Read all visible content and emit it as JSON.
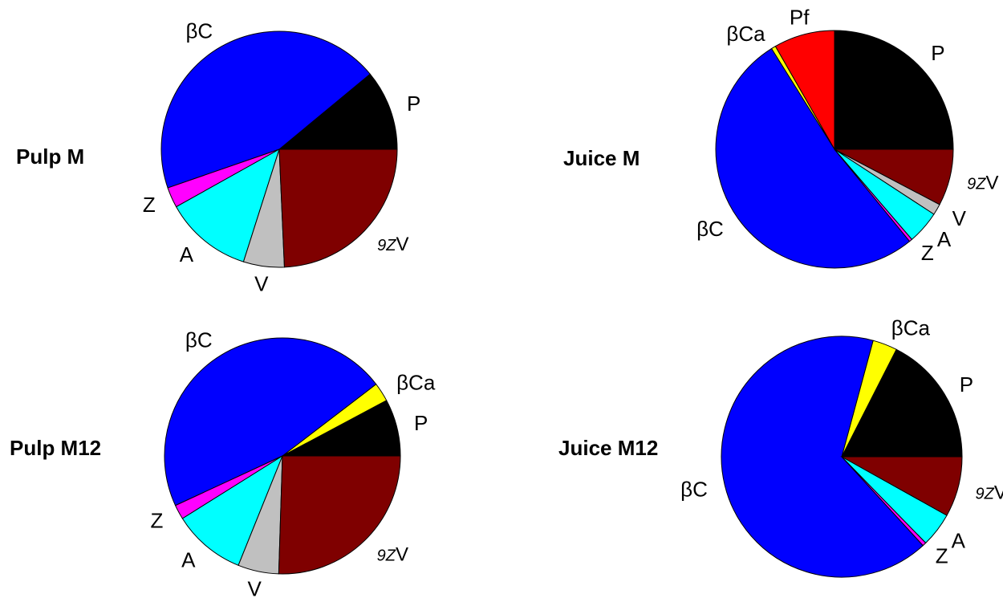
{
  "chart_data": [
    {
      "type": "pie",
      "title": "Pulp M",
      "slices": [
        {
          "label": "P",
          "value": 11.0,
          "color": "#000000"
        },
        {
          "label": "βC",
          "value": 44.3,
          "color": "#0000ff"
        },
        {
          "label": "Z",
          "value": 2.8,
          "color": "#ff00ff"
        },
        {
          "label": "A",
          "value": 12.0,
          "color": "#00ffff"
        },
        {
          "label": "V",
          "value": 5.6,
          "color": "#c0c0c0"
        },
        {
          "label": "9ZV",
          "value": 24.3,
          "color": "#7f0000"
        }
      ]
    },
    {
      "type": "pie",
      "title": "Juice M",
      "slices": [
        {
          "label": "P",
          "value": 25.0,
          "color": "#000000"
        },
        {
          "label": "Pf",
          "value": 8.3,
          "color": "#ff0000"
        },
        {
          "label": "βCa",
          "value": 0.6,
          "color": "#ffff00"
        },
        {
          "label": "βC",
          "value": 52.0,
          "color": "#0000ff"
        },
        {
          "label": "Z",
          "value": 0.4,
          "color": "#ff00ff"
        },
        {
          "label": "A",
          "value": 4.5,
          "color": "#00ffff"
        },
        {
          "label": "V",
          "value": 1.5,
          "color": "#c0c0c0"
        },
        {
          "label": "9ZV",
          "value": 7.7,
          "color": "#7f0000"
        }
      ]
    },
    {
      "type": "pie",
      "title": "Pulp M12",
      "slices": [
        {
          "label": "P",
          "value": 7.8,
          "color": "#000000"
        },
        {
          "label": "βCa",
          "value": 2.6,
          "color": "#ffff00"
        },
        {
          "label": "βC",
          "value": 46.5,
          "color": "#0000ff"
        },
        {
          "label": "Z",
          "value": 2.0,
          "color": "#ff00ff"
        },
        {
          "label": "A",
          "value": 10.0,
          "color": "#00ffff"
        },
        {
          "label": "V",
          "value": 5.6,
          "color": "#c0c0c0"
        },
        {
          "label": "9ZV",
          "value": 25.5,
          "color": "#7f0000"
        }
      ]
    },
    {
      "type": "pie",
      "title": "Juice M12",
      "slices": [
        {
          "label": "P",
          "value": 17.5,
          "color": "#000000"
        },
        {
          "label": "βCa",
          "value": 3.3,
          "color": "#ffff00"
        },
        {
          "label": "βC",
          "value": 66.0,
          "color": "#0000ff"
        },
        {
          "label": "Z",
          "value": 0.5,
          "color": "#ff00ff"
        },
        {
          "label": "A",
          "value": 4.6,
          "color": "#00ffff"
        },
        {
          "label": "9ZV",
          "value": 8.1,
          "color": "#7f0000"
        }
      ]
    }
  ]
}
